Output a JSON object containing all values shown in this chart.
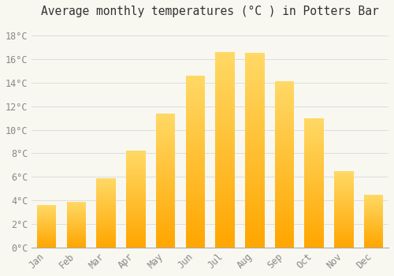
{
  "title": "Average monthly temperatures (°C ) in Potters Bar",
  "months": [
    "Jan",
    "Feb",
    "Mar",
    "Apr",
    "May",
    "Jun",
    "Jul",
    "Aug",
    "Sep",
    "Oct",
    "Nov",
    "Dec"
  ],
  "values": [
    3.6,
    3.9,
    5.9,
    8.2,
    11.4,
    14.6,
    16.6,
    16.5,
    14.1,
    11.0,
    6.5,
    4.5
  ],
  "bar_color_top": "#FFD966",
  "bar_color_bottom": "#FFA500",
  "background_color": "#F8F8F0",
  "grid_color": "#DDDDDD",
  "ylim": [
    0,
    19
  ],
  "yticks": [
    0,
    2,
    4,
    6,
    8,
    10,
    12,
    14,
    16,
    18
  ],
  "ytick_labels": [
    "0°C",
    "2°C",
    "4°C",
    "6°C",
    "8°C",
    "10°C",
    "12°C",
    "14°C",
    "16°C",
    "18°C"
  ],
  "title_fontsize": 10.5,
  "tick_fontsize": 8.5,
  "tick_color": "#888888",
  "bar_width": 0.65
}
